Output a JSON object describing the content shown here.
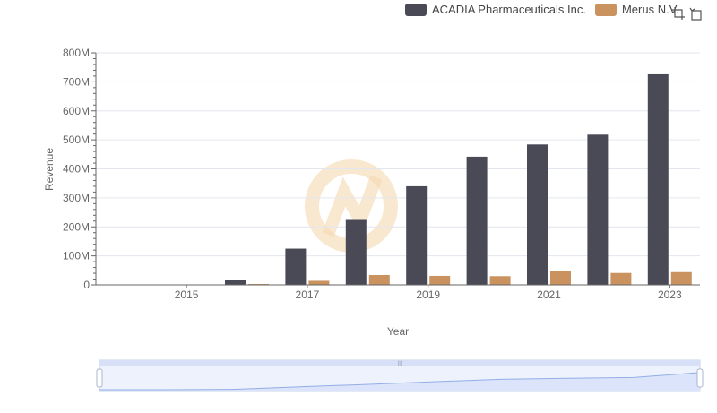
{
  "colors": {
    "acadia": "#4a4a56",
    "merus": "#c9925e",
    "grid": "#e3e6ee",
    "axis": "#666666",
    "slider_fill": "#dbe4fb",
    "slider_border": "#c9d3ee",
    "slider_line": "#93aee6",
    "watermark": "#f5d9b0"
  },
  "toolbar": {
    "icons": [
      "crosshair-icon",
      "restore-icon"
    ]
  },
  "chart_data": {
    "type": "bar",
    "title": "",
    "xlabel": "Year",
    "ylabel": "Revenue",
    "ylim": [
      0,
      800000000
    ],
    "ytick_values": [
      0,
      100000000,
      200000000,
      300000000,
      400000000,
      500000000,
      600000000,
      700000000,
      800000000
    ],
    "ytick_labels": [
      "0",
      "100M",
      "200M",
      "300M",
      "400M",
      "500M",
      "600M",
      "700M",
      "800M"
    ],
    "categories": [
      "2014",
      "2015",
      "2016",
      "2017",
      "2018",
      "2019",
      "2020",
      "2021",
      "2022",
      "2023"
    ],
    "xtick_labels": [
      "2015",
      "2017",
      "2019",
      "2021",
      "2023"
    ],
    "legend_position": "top-right",
    "grid": true,
    "series": [
      {
        "name": "ACADIA Pharmaceuticals Inc.",
        "values": [
          800000,
          1000000,
          17000000,
          125000000,
          224000000,
          340000000,
          442000000,
          484000000,
          518000000,
          726000000
        ]
      },
      {
        "name": "Merus N.V.",
        "values": [
          1500000,
          1500000,
          3000000,
          14000000,
          34000000,
          31000000,
          30000000,
          49000000,
          41000000,
          44000000
        ]
      }
    ]
  }
}
